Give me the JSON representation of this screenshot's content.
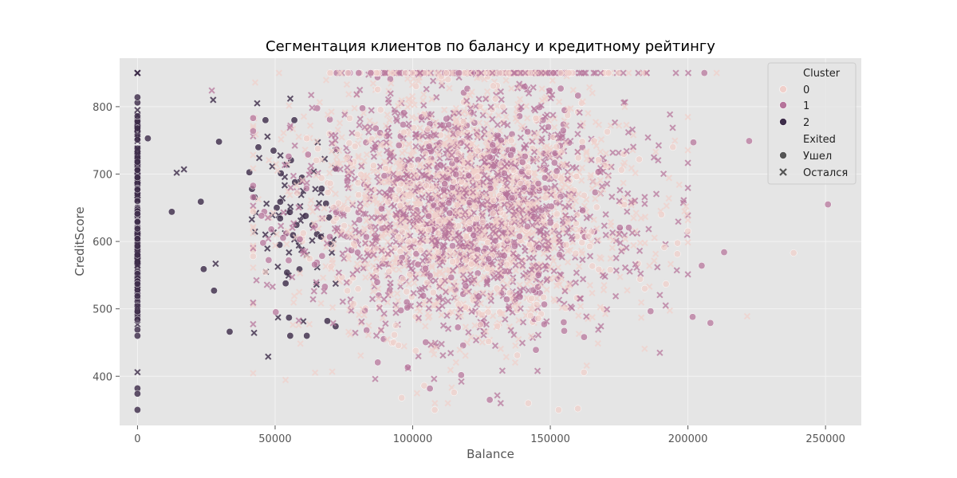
{
  "chart_data": {
    "type": "scatter",
    "title": "Сегментация клиентов по балансу и кредитному рейтингу",
    "xlabel": "Balance",
    "ylabel": "CreditScore",
    "xlim": [
      -6500,
      263000
    ],
    "ylim": [
      327,
      872
    ],
    "xticks": [
      0,
      50000,
      100000,
      150000,
      200000,
      250000
    ],
    "yticks": [
      400,
      500,
      600,
      700,
      800
    ],
    "grid": true,
    "legend_position": "top-right",
    "hue_legend": {
      "title": "Cluster",
      "entries": [
        {
          "label": "0",
          "color": "#f0d0cb"
        },
        {
          "label": "1",
          "color": "#b5739a"
        },
        {
          "label": "2",
          "color": "#3e2d4a"
        }
      ]
    },
    "style_legend": {
      "title": "Exited",
      "entries": [
        {
          "label": "Ушел",
          "marker": "circle"
        },
        {
          "label": "Остался",
          "marker": "x"
        }
      ]
    },
    "sample_points": [
      {
        "x": 250898,
        "y": 655,
        "cluster": "1",
        "marker": "circle"
      },
      {
        "x": 238387,
        "y": 583,
        "cluster": "0",
        "marker": "circle"
      },
      {
        "x": 222267,
        "y": 749,
        "cluster": "1",
        "marker": "circle"
      },
      {
        "x": 221532,
        "y": 489,
        "cluster": "0",
        "marker": "x"
      },
      {
        "x": 213146,
        "y": 584,
        "cluster": "1",
        "marker": "circle"
      },
      {
        "x": 210433,
        "y": 850,
        "cluster": "0",
        "marker": "x"
      },
      {
        "x": 205962,
        "y": 850,
        "cluster": "1",
        "marker": "circle"
      },
      {
        "x": 200117,
        "y": 850,
        "cluster": "1",
        "marker": "x"
      },
      {
        "x": 208165,
        "y": 479,
        "cluster": "1",
        "marker": "circle"
      },
      {
        "x": 201696,
        "y": 488,
        "cluster": "1",
        "marker": "circle"
      },
      {
        "x": 205000,
        "y": 564,
        "cluster": "1",
        "marker": "circle"
      },
      {
        "x": 202000,
        "y": 747,
        "cluster": "1",
        "marker": "circle"
      },
      {
        "x": 160000,
        "y": 352,
        "cluster": "0",
        "marker": "circle"
      },
      {
        "x": 153000,
        "y": 350,
        "cluster": "0",
        "marker": "circle"
      },
      {
        "x": 142000,
        "y": 360,
        "cluster": "0",
        "marker": "circle"
      },
      {
        "x": 128000,
        "y": 365,
        "cluster": "1",
        "marker": "circle"
      },
      {
        "x": 108000,
        "y": 350,
        "cluster": "0",
        "marker": "circle"
      },
      {
        "x": 96000,
        "y": 368,
        "cluster": "0",
        "marker": "circle"
      },
      {
        "x": 115000,
        "y": 376,
        "cluster": "0",
        "marker": "circle"
      },
      {
        "x": 3768,
        "y": 753,
        "cluster": "2",
        "marker": "circle"
      },
      {
        "x": 12459,
        "y": 644,
        "cluster": "2",
        "marker": "circle"
      },
      {
        "x": 14262,
        "y": 702,
        "cluster": "2",
        "marker": "x"
      },
      {
        "x": 16893,
        "y": 707,
        "cluster": "2",
        "marker": "x"
      },
      {
        "x": 23000,
        "y": 659,
        "cluster": "2",
        "marker": "circle"
      },
      {
        "x": 24043,
        "y": 559,
        "cluster": "2",
        "marker": "circle"
      },
      {
        "x": 27000,
        "y": 824,
        "cluster": "1",
        "marker": "x"
      },
      {
        "x": 27500,
        "y": 810,
        "cluster": "2",
        "marker": "x"
      },
      {
        "x": 27800,
        "y": 527,
        "cluster": "2",
        "marker": "circle"
      },
      {
        "x": 28400,
        "y": 567,
        "cluster": "2",
        "marker": "x"
      },
      {
        "x": 29600,
        "y": 748,
        "cluster": "2",
        "marker": "circle"
      },
      {
        "x": 33500,
        "y": 466,
        "cluster": "2",
        "marker": "circle"
      },
      {
        "x": 47500,
        "y": 429,
        "cluster": "2",
        "marker": "x"
      },
      {
        "x": 55500,
        "y": 812,
        "cluster": "2",
        "marker": "x"
      },
      {
        "x": 57000,
        "y": 780,
        "cluster": "2",
        "marker": "circle"
      },
      {
        "x": 69000,
        "y": 482,
        "cluster": "2",
        "marker": "circle"
      },
      {
        "x": 46500,
        "y": 780,
        "cluster": "2",
        "marker": "circle"
      },
      {
        "x": 43500,
        "y": 805,
        "cluster": "2",
        "marker": "x"
      }
    ]
  }
}
